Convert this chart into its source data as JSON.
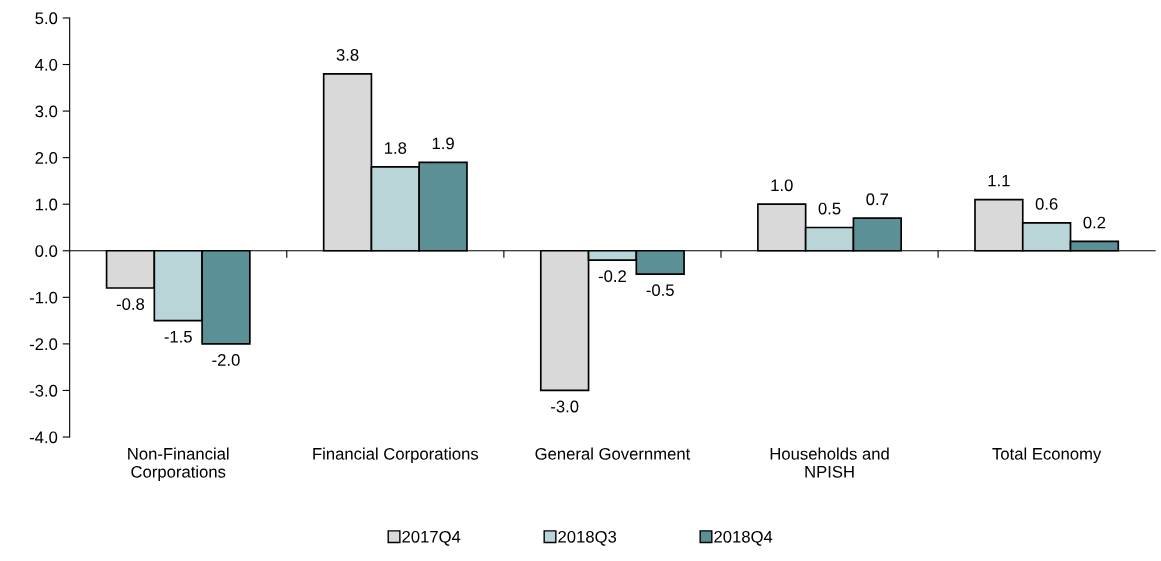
{
  "chart_data": {
    "type": "bar",
    "categories": [
      "Non-Financial\nCorporations",
      "Financial Corporations",
      "General Government",
      "Households and\nNPISH",
      "Total Economy"
    ],
    "series": [
      {
        "name": "2017Q4",
        "color": "#d9d9d9",
        "values": [
          -0.8,
          3.8,
          -3.0,
          1.0,
          1.1
        ],
        "value_labels": [
          "-0.8",
          "3.8",
          "-3.0",
          "1.0",
          "1.1"
        ]
      },
      {
        "name": "2018Q3",
        "color": "#b9d5d8",
        "values": [
          -1.5,
          1.8,
          -0.2,
          0.5,
          0.6
        ],
        "value_labels": [
          "-1.5",
          "1.8",
          "-0.2",
          "0.5",
          "0.6"
        ]
      },
      {
        "name": "2018Q4",
        "color": "#5b9196",
        "values": [
          -2.0,
          1.9,
          -0.5,
          0.7,
          0.2
        ],
        "value_labels": [
          "-2.0",
          "1.9",
          "-0.5",
          "0.7",
          "0.2"
        ]
      }
    ],
    "ylim": [
      -4.0,
      5.0
    ],
    "yticks": [
      {
        "value": -4,
        "label": "-4.0"
      },
      {
        "value": -3,
        "label": "-3.0"
      },
      {
        "value": -2,
        "label": "-2.0"
      },
      {
        "value": -1,
        "label": "-1.0"
      },
      {
        "value": 0,
        "label": "0.0"
      },
      {
        "value": 1,
        "label": "1.0"
      },
      {
        "value": 2,
        "label": "2.0"
      },
      {
        "value": 3,
        "label": "3.0"
      },
      {
        "value": 4,
        "label": "4.0"
      },
      {
        "value": 5,
        "label": "5.0"
      }
    ],
    "legend": "bottom"
  }
}
